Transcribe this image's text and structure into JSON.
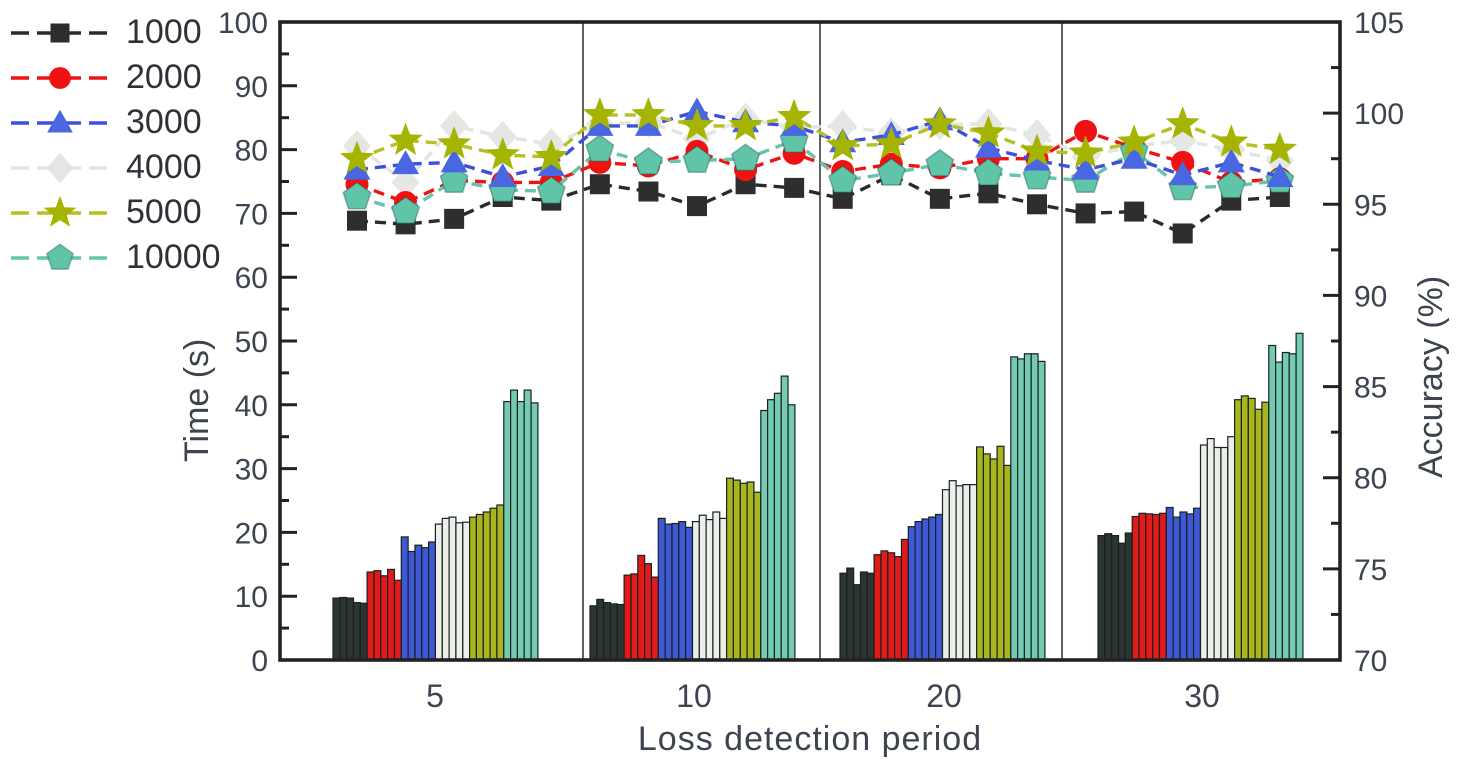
{
  "chart_data": {
    "type": "bar+line",
    "title": "",
    "xlabel": "Loss detection period",
    "ylabel_left": "Time (s)",
    "ylabel_right": "Accuracy (%)",
    "left_axis": {
      "min": 0,
      "max": 100,
      "major_tick": 10,
      "minor_tick": 5,
      "tick_labels": [
        "0",
        "10",
        "20",
        "30",
        "40",
        "50",
        "60",
        "70",
        "80",
        "90",
        "100"
      ]
    },
    "right_axis": {
      "min": 70,
      "max": 105,
      "major_tick": 5,
      "minor_tick": 2.5,
      "tick_labels": [
        "70",
        "75",
        "80",
        "85",
        "90",
        "95",
        "100",
        "105"
      ]
    },
    "groups": [
      "5",
      "10",
      "20",
      "30"
    ],
    "bars_per_series_per_group": 5,
    "legend_position": "top-left-outside",
    "grid": false,
    "panel_dividers": true,
    "series": [
      {
        "name": "1000",
        "marker": "square",
        "bar_color": "#2d3434",
        "line_color": "#2b2b2b",
        "marker_color": "#2e2e2e",
        "time_bars": [
          [
            9.7,
            9.8,
            9.7,
            9.0,
            8.9
          ],
          [
            8.5,
            9.5,
            9.0,
            8.8,
            8.7
          ],
          [
            13.6,
            14.4,
            11.8,
            13.8,
            13.6
          ],
          [
            19.5,
            19.8,
            19.5,
            18.3,
            19.9
          ]
        ],
        "accuracy": [
          [
            94.1,
            93.9,
            94.2,
            95.4,
            95.2
          ],
          [
            96.1,
            95.7,
            94.9,
            96.1,
            95.9
          ],
          [
            95.3,
            96.6,
            95.3,
            95.6,
            95.0
          ],
          [
            94.5,
            94.6,
            93.4,
            95.2,
            95.4
          ]
        ]
      },
      {
        "name": "2000",
        "marker": "circle",
        "bar_color": "#e31a1a",
        "line_color": "#ee1414",
        "marker_color": "#f01212",
        "time_bars": [
          [
            13.8,
            14.0,
            13.2,
            14.2,
            12.5
          ],
          [
            13.3,
            13.5,
            16.4,
            15.1,
            13.0
          ],
          [
            16.5,
            17.1,
            16.8,
            16.2,
            18.9
          ],
          [
            22.5,
            23.0,
            22.9,
            22.8,
            23.0
          ]
        ],
        "accuracy": [
          [
            96.1,
            95.1,
            96.3,
            96.2,
            96.2
          ],
          [
            97.3,
            97.1,
            97.9,
            96.9,
            97.8
          ],
          [
            96.8,
            97.2,
            97.0,
            97.5,
            97.5
          ],
          [
            99.0,
            98.1,
            97.3,
            96.2,
            96.4
          ]
        ]
      },
      {
        "name": "3000",
        "marker": "triangle",
        "bar_color": "#3f58d6",
        "line_color": "#3c50dd",
        "marker_color": "#4a66e0",
        "time_bars": [
          [
            19.3,
            17.0,
            18.0,
            17.6,
            18.5
          ],
          [
            22.2,
            21.3,
            21.4,
            21.7,
            20.8
          ],
          [
            20.9,
            21.7,
            22.1,
            22.4,
            22.8
          ],
          [
            23.9,
            22.4,
            23.2,
            22.9,
            23.8
          ]
        ],
        "accuracy": [
          [
            96.9,
            97.2,
            97.3,
            96.5,
            97.1
          ],
          [
            99.3,
            99.3,
            100.1,
            99.5,
            99.3
          ],
          [
            98.4,
            98.8,
            99.6,
            98.1,
            97.4
          ],
          [
            96.9,
            97.5,
            96.6,
            97.3,
            96.5
          ]
        ]
      },
      {
        "name": "4000",
        "marker": "diamond",
        "bar_color": "#eceeea",
        "line_color": "#e2e5e1",
        "marker_color": "#e4e7e3",
        "time_bars": [
          [
            21.3,
            22.2,
            22.4,
            21.5,
            21.6
          ],
          [
            21.7,
            22.7,
            22.0,
            23.2,
            22.2
          ],
          [
            26.7,
            28.1,
            27.3,
            27.5,
            27.5
          ],
          [
            33.7,
            34.7,
            33.3,
            33.3,
            35.0
          ]
        ],
        "accuracy": [
          [
            98.2,
            96.2,
            99.3,
            98.7,
            98.3
          ],
          [
            99.4,
            99.5,
            98.6,
            99.7,
            99.2
          ],
          [
            99.3,
            98.9,
            99.4,
            99.4,
            98.8
          ],
          [
            97.6,
            98.2,
            98.5,
            98.0,
            97.4
          ]
        ]
      },
      {
        "name": "5000",
        "marker": "star",
        "bar_color": "#a9b51f",
        "line_color": "#b7bf25",
        "marker_color": "#a4b400",
        "time_bars": [
          [
            22.4,
            22.8,
            23.2,
            23.8,
            24.3
          ],
          [
            28.5,
            28.2,
            27.7,
            27.9,
            26.3
          ],
          [
            33.4,
            32.3,
            31.5,
            33.5,
            30.5
          ],
          [
            40.8,
            41.4,
            41.0,
            39.3,
            40.4
          ]
        ],
        "accuracy": [
          [
            97.5,
            98.5,
            98.3,
            97.7,
            97.6
          ],
          [
            99.9,
            99.9,
            99.3,
            99.3,
            99.8
          ],
          [
            98.2,
            98.3,
            99.4,
            98.9,
            97.9
          ],
          [
            97.8,
            98.4,
            99.4,
            98.4,
            98.0
          ]
        ]
      },
      {
        "name": "10000",
        "marker": "pentagon",
        "bar_color": "#74cab3",
        "line_color": "#67c3ab",
        "marker_color": "#5fc4a8",
        "time_bars": [
          [
            40.5,
            42.3,
            40.5,
            42.3,
            40.3
          ],
          [
            39.1,
            40.8,
            41.8,
            44.5,
            40.0
          ],
          [
            47.5,
            47.2,
            48.0,
            48.0,
            46.8
          ],
          [
            49.3,
            46.7,
            48.2,
            48.0,
            51.2
          ]
        ],
        "accuracy": [
          [
            95.4,
            94.6,
            96.3,
            95.8,
            95.7
          ],
          [
            98.0,
            97.3,
            97.4,
            97.5,
            98.5
          ],
          [
            96.3,
            96.7,
            97.2,
            96.7,
            96.5
          ],
          [
            96.3,
            97.9,
            95.9,
            96.0,
            96.3
          ]
        ]
      }
    ]
  }
}
